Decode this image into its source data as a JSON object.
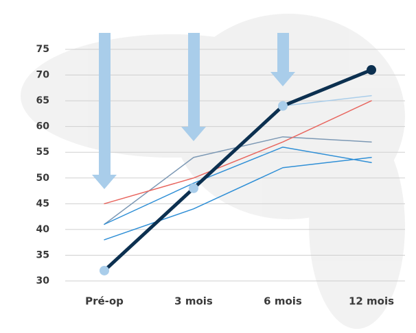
{
  "chart_data": {
    "type": "line",
    "categories": [
      "Pré-op",
      "3 mois",
      "6 mois",
      "12 mois"
    ],
    "ylim": [
      30,
      75
    ],
    "yticks": [
      30,
      35,
      40,
      45,
      50,
      55,
      60,
      65,
      70,
      75
    ],
    "grid": true,
    "series": [
      {
        "color": "#a9cdea",
        "width": 1.5,
        "values": [
          null,
          null,
          64,
          66
        ]
      },
      {
        "color": "#7c98b4",
        "width": 1.5,
        "values": [
          41,
          54,
          58,
          57
        ]
      },
      {
        "color": "#e8665f",
        "width": 1.5,
        "values": [
          45,
          50,
          57,
          65
        ]
      },
      {
        "color": "#2f8fd6",
        "width": 1.5,
        "values": [
          41,
          49,
          56,
          53
        ]
      },
      {
        "color": "#2f8fd6",
        "width": 1.5,
        "values": [
          38,
          44,
          52,
          54
        ]
      },
      {
        "color": "#0c3050",
        "width": 5,
        "values": [
          32,
          48,
          64,
          71
        ],
        "marker_colors": [
          "#a9cdea",
          "#a9cdea",
          "#a9cdea",
          "#0c3050"
        ]
      }
    ]
  }
}
